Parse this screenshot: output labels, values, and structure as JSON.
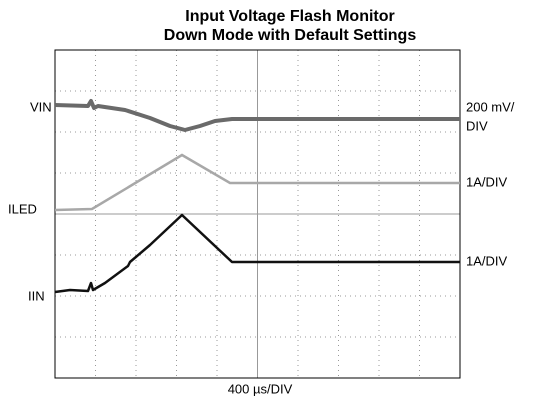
{
  "title": [
    "Input Voltage Flash Monitor",
    "Down Mode with Default Settings"
  ],
  "left_labels": [
    "VIN",
    "ILED",
    "IIN"
  ],
  "right_labels": [
    "200 mV/",
    "DIV",
    "1A/DIV",
    "1A/DIV"
  ],
  "x_scale": "400 µs/DIV"
}
